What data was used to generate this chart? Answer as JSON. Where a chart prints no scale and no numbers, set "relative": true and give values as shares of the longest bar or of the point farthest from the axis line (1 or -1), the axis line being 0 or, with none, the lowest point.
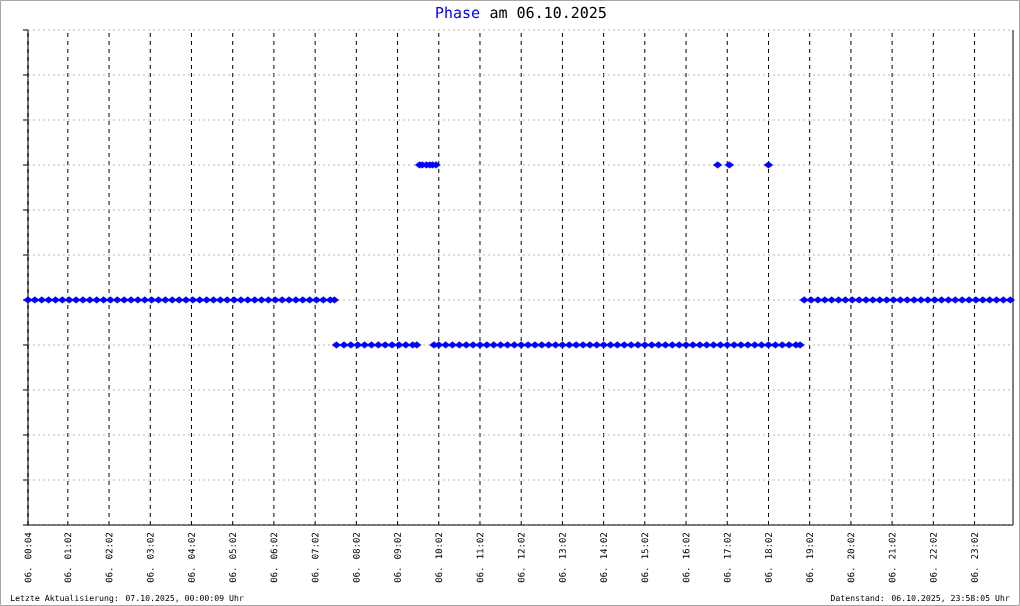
{
  "chart_data": {
    "type": "scatter",
    "title": "am 06.10.2025",
    "annotations": [
      "Letzte Aktualisierung: 07.10.2025, 00:00:09 Uhr",
      "Datenstand: 06.10.2025, 23:58:05 Uhr"
    ],
    "relative": true,
    "grid": true,
    "marker": "diamond",
    "xlim": [
      "2025-10-06T00:04",
      "2025-10-06T23:58"
    ],
    "xticks": [
      {
        "value": "2025-10-06T00:04",
        "label": "06. 00:04"
      },
      {
        "value": "2025-10-06T01:02",
        "label": "06. 01:02"
      },
      {
        "value": "2025-10-06T02:02",
        "label": "06. 02:02"
      },
      {
        "value": "2025-10-06T03:02",
        "label": "06. 03:02"
      },
      {
        "value": "2025-10-06T04:02",
        "label": "06. 04:02"
      },
      {
        "value": "2025-10-06T05:02",
        "label": "06. 05:02"
      },
      {
        "value": "2025-10-06T06:02",
        "label": "06. 06:02"
      },
      {
        "value": "2025-10-06T07:02",
        "label": "06. 07:02"
      },
      {
        "value": "2025-10-06T08:02",
        "label": "06. 08:02"
      },
      {
        "value": "2025-10-06T09:02",
        "label": "06. 09:02"
      },
      {
        "value": "2025-10-06T10:02",
        "label": "06. 10:02"
      },
      {
        "value": "2025-10-06T11:02",
        "label": "06. 11:02"
      },
      {
        "value": "2025-10-06T12:02",
        "label": "06. 12:02"
      },
      {
        "value": "2025-10-06T13:02",
        "label": "06. 13:02"
      },
      {
        "value": "2025-10-06T14:02",
        "label": "06. 14:02"
      },
      {
        "value": "2025-10-06T15:02",
        "label": "06. 15:02"
      },
      {
        "value": "2025-10-06T16:02",
        "label": "06. 16:02"
      },
      {
        "value": "2025-10-06T17:02",
        "label": "06. 17:02"
      },
      {
        "value": "2025-10-06T18:02",
        "label": "06. 18:02"
      },
      {
        "value": "2025-10-06T19:02",
        "label": "06. 19:02"
      },
      {
        "value": "2025-10-06T20:02",
        "label": "06. 20:02"
      },
      {
        "value": "2025-10-06T21:02",
        "label": "06. 21:02"
      },
      {
        "value": "2025-10-06T22:02",
        "label": "06. 22:02"
      },
      {
        "value": "2025-10-06T23:02",
        "label": "06. 23:02"
      }
    ],
    "x": [
      "2025-10-06T00:04",
      "2025-10-06T00:14",
      "2025-10-06T00:24",
      "2025-10-06T00:34",
      "2025-10-06T00:44",
      "2025-10-06T00:54",
      "2025-10-06T01:04",
      "2025-10-06T01:14",
      "2025-10-06T01:24",
      "2025-10-06T01:34",
      "2025-10-06T01:44",
      "2025-10-06T01:54",
      "2025-10-06T02:04",
      "2025-10-06T02:14",
      "2025-10-06T02:24",
      "2025-10-06T02:34",
      "2025-10-06T02:44",
      "2025-10-06T02:54",
      "2025-10-06T03:04",
      "2025-10-06T03:14",
      "2025-10-06T03:24",
      "2025-10-06T03:34",
      "2025-10-06T03:44",
      "2025-10-06T03:54",
      "2025-10-06T04:04",
      "2025-10-06T04:14",
      "2025-10-06T04:24",
      "2025-10-06T04:34",
      "2025-10-06T04:44",
      "2025-10-06T04:54",
      "2025-10-06T05:04",
      "2025-10-06T05:14",
      "2025-10-06T05:24",
      "2025-10-06T05:34",
      "2025-10-06T05:44",
      "2025-10-06T05:54",
      "2025-10-06T06:04",
      "2025-10-06T06:14",
      "2025-10-06T06:24",
      "2025-10-06T06:34",
      "2025-10-06T06:44",
      "2025-10-06T06:54",
      "2025-10-06T07:04",
      "2025-10-06T07:14",
      "2025-10-06T07:24",
      "2025-10-06T07:30",
      "2025-10-06T07:33",
      "2025-10-06T07:44",
      "2025-10-06T07:54",
      "2025-10-06T08:04",
      "2025-10-06T08:14",
      "2025-10-06T08:24",
      "2025-10-06T08:34",
      "2025-10-06T08:44",
      "2025-10-06T08:54",
      "2025-10-06T09:04",
      "2025-10-06T09:14",
      "2025-10-06T09:24",
      "2025-10-06T09:30",
      "2025-10-06T09:34",
      "2025-10-06T09:38",
      "2025-10-06T09:44",
      "2025-10-06T09:49",
      "2025-10-06T09:53",
      "2025-10-06T09:55",
      "2025-10-06T09:58",
      "2025-10-06T10:02",
      "2025-10-06T10:12",
      "2025-10-06T10:22",
      "2025-10-06T10:32",
      "2025-10-06T10:42",
      "2025-10-06T10:52",
      "2025-10-06T11:02",
      "2025-10-06T11:12",
      "2025-10-06T11:22",
      "2025-10-06T11:32",
      "2025-10-06T11:42",
      "2025-10-06T11:52",
      "2025-10-06T12:02",
      "2025-10-06T12:12",
      "2025-10-06T12:22",
      "2025-10-06T12:32",
      "2025-10-06T12:42",
      "2025-10-06T12:52",
      "2025-10-06T13:02",
      "2025-10-06T13:12",
      "2025-10-06T13:22",
      "2025-10-06T13:32",
      "2025-10-06T13:42",
      "2025-10-06T13:52",
      "2025-10-06T14:02",
      "2025-10-06T14:12",
      "2025-10-06T14:22",
      "2025-10-06T14:32",
      "2025-10-06T14:42",
      "2025-10-06T14:52",
      "2025-10-06T15:02",
      "2025-10-06T15:12",
      "2025-10-06T15:22",
      "2025-10-06T15:32",
      "2025-10-06T15:42",
      "2025-10-06T15:52",
      "2025-10-06T16:02",
      "2025-10-06T16:12",
      "2025-10-06T16:22",
      "2025-10-06T16:32",
      "2025-10-06T16:42",
      "2025-10-06T16:48",
      "2025-10-06T16:52",
      "2025-10-06T17:02",
      "2025-10-06T17:05",
      "2025-10-06T17:12",
      "2025-10-06T17:22",
      "2025-10-06T17:32",
      "2025-10-06T17:42",
      "2025-10-06T17:52",
      "2025-10-06T18:02",
      "2025-10-06T18:02",
      "2025-10-06T18:12",
      "2025-10-06T18:22",
      "2025-10-06T18:32",
      "2025-10-06T18:42",
      "2025-10-06T18:48",
      "2025-10-06T18:54",
      "2025-10-06T19:04",
      "2025-10-06T19:14",
      "2025-10-06T19:24",
      "2025-10-06T19:34",
      "2025-10-06T19:44",
      "2025-10-06T19:54",
      "2025-10-06T20:04",
      "2025-10-06T20:14",
      "2025-10-06T20:24",
      "2025-10-06T20:34",
      "2025-10-06T20:44",
      "2025-10-06T20:54",
      "2025-10-06T21:04",
      "2025-10-06T21:14",
      "2025-10-06T21:24",
      "2025-10-06T21:34",
      "2025-10-06T21:44",
      "2025-10-06T21:54",
      "2025-10-06T22:04",
      "2025-10-06T22:14",
      "2025-10-06T22:24",
      "2025-10-06T22:34",
      "2025-10-06T22:44",
      "2025-10-06T22:54",
      "2025-10-06T23:04",
      "2025-10-06T23:14",
      "2025-10-06T23:24",
      "2025-10-06T23:34",
      "2025-10-06T23:44",
      "2025-10-06T23:54"
    ],
    "series": [
      {
        "name": "Phase",
        "color": "#0000ff",
        "values": [
          0.625,
          0.625,
          0.625,
          0.625,
          0.625,
          0.625,
          0.625,
          0.625,
          0.625,
          0.625,
          0.625,
          0.625,
          0.625,
          0.625,
          0.625,
          0.625,
          0.625,
          0.625,
          0.625,
          0.625,
          0.625,
          0.625,
          0.625,
          0.625,
          0.625,
          0.625,
          0.625,
          0.625,
          0.625,
          0.625,
          0.625,
          0.625,
          0.625,
          0.625,
          0.625,
          0.625,
          0.625,
          0.625,
          0.625,
          0.625,
          0.625,
          0.625,
          0.625,
          0.625,
          0.625,
          0.625,
          0.5,
          0.5,
          0.5,
          0.5,
          0.5,
          0.5,
          0.5,
          0.5,
          0.5,
          0.5,
          0.5,
          0.5,
          0.5,
          1,
          1,
          1,
          1,
          1,
          0.5,
          1,
          0.5,
          0.5,
          0.5,
          0.5,
          0.5,
          0.5,
          0.5,
          0.5,
          0.5,
          0.5,
          0.5,
          0.5,
          0.5,
          0.5,
          0.5,
          0.5,
          0.5,
          0.5,
          0.5,
          0.5,
          0.5,
          0.5,
          0.5,
          0.5,
          0.5,
          0.5,
          0.5,
          0.5,
          0.5,
          0.5,
          0.5,
          0.5,
          0.5,
          0.5,
          0.5,
          0.5,
          0.5,
          0.5,
          0.5,
          0.5,
          0.5,
          1,
          0.5,
          0.5,
          1,
          0.5,
          0.5,
          0.5,
          0.5,
          0.5,
          1,
          0.5,
          0.5,
          0.5,
          0.5,
          0.5,
          0.5,
          0.625,
          0.625,
          0.625,
          0.625,
          0.625,
          0.625,
          0.625,
          0.625,
          0.625,
          0.625,
          0.625,
          0.625,
          0.625,
          0.625,
          0.625,
          0.625,
          0.625,
          0.625,
          0.625,
          0.625,
          0.625,
          0.625,
          0.625,
          0.625,
          0.625,
          0.625,
          0.625,
          0.625,
          0.625,
          0.625,
          0.625
        ]
      }
    ]
  }
}
